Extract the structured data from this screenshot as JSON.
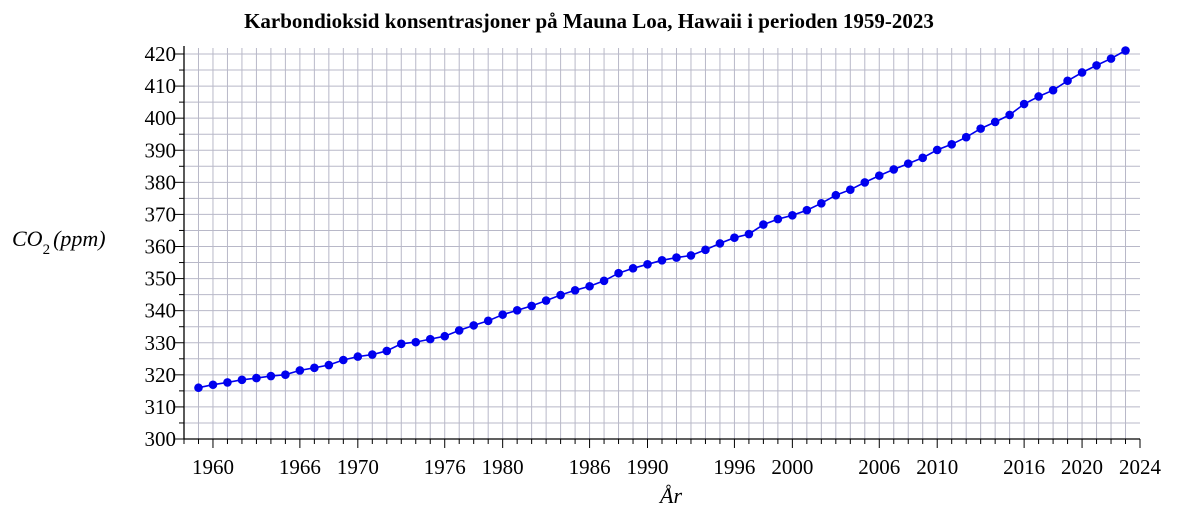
{
  "chart_data": {
    "type": "line",
    "title": "Karbondioksid konsentrasjoner på Mauna Loa, Hawaii i perioden 1959-2023",
    "xlabel": "År",
    "ylabel": {
      "main": "CO",
      "subscript": "2",
      "unit": "(ppm)"
    },
    "xlim": [
      1958,
      2024
    ],
    "ylim": [
      300,
      420
    ],
    "x_ticks": [
      1960,
      1966,
      1970,
      1976,
      1980,
      1986,
      1990,
      1996,
      2000,
      2006,
      2010,
      2016,
      2020,
      2024
    ],
    "y_ticks": [
      300,
      310,
      320,
      330,
      340,
      350,
      360,
      370,
      380,
      390,
      400,
      410,
      420
    ],
    "grid": true,
    "line_color": "#0000ee",
    "marker_color": "#0000ee",
    "series": [
      {
        "x": [
          1959,
          1960,
          1961,
          1962,
          1963,
          1964,
          1965,
          1966,
          1967,
          1968,
          1969,
          1970,
          1971,
          1972,
          1973,
          1974,
          1975,
          1976,
          1977,
          1978,
          1979,
          1980,
          1981,
          1982,
          1983,
          1984,
          1985,
          1986,
          1987,
          1988,
          1989,
          1990,
          1991,
          1992,
          1993,
          1994,
          1995,
          1996,
          1997,
          1998,
          1999,
          2000,
          2001,
          2002,
          2003,
          2004,
          2005,
          2006,
          2007,
          2008,
          2009,
          2010,
          2011,
          2012,
          2013,
          2014,
          2015,
          2016,
          2017,
          2018,
          2019,
          2020,
          2021,
          2022,
          2023
        ],
        "y": [
          315.98,
          316.91,
          317.64,
          318.45,
          318.99,
          319.62,
          320.04,
          321.37,
          322.18,
          323.05,
          324.62,
          325.68,
          326.32,
          327.46,
          329.68,
          330.19,
          331.13,
          332.03,
          333.84,
          335.41,
          336.84,
          338.76,
          340.12,
          341.48,
          343.15,
          344.87,
          346.35,
          347.61,
          349.31,
          351.69,
          353.2,
          354.45,
          355.7,
          356.54,
          357.21,
          358.96,
          360.97,
          362.74,
          363.88,
          366.84,
          368.54,
          369.71,
          371.32,
          373.45,
          375.98,
          377.7,
          379.98,
          382.09,
          384.02,
          385.83,
          387.64,
          390.1,
          391.85,
          394.06,
          396.74,
          398.81,
          401.01,
          404.41,
          406.76,
          408.72,
          411.66,
          414.24,
          416.45,
          418.56,
          421.08
        ]
      }
    ]
  }
}
